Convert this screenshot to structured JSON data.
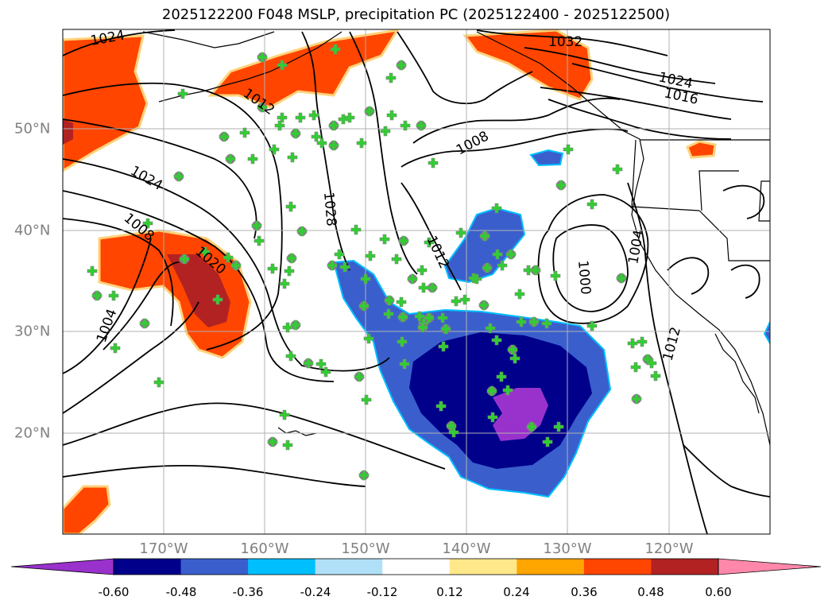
{
  "title": "2025122200 F048 MSLP, precipitation PC (2025122400 - 2025122500)",
  "map": {
    "projection": "plate-carree",
    "lon_range": [
      -180,
      -110
    ],
    "lat_range": [
      10,
      60
    ],
    "lon_ticks": [
      "170°W",
      "160°W",
      "150°W",
      "140°W",
      "130°W",
      "120°W"
    ],
    "lat_ticks": [
      "50°N",
      "40°N",
      "30°N",
      "20°N"
    ],
    "contour_labels": [
      "1024",
      "1032",
      "1012",
      "1024",
      "1016",
      "1008",
      "1024",
      "1028",
      "1008",
      "1020",
      "1012",
      "1004",
      "1000",
      "1004",
      "1012"
    ],
    "marker_color": "#32cd32",
    "marker_edge_color": "#808080",
    "contour_color": "#000000"
  },
  "colorbar": {
    "tick_labels": [
      "-0.60",
      "-0.48",
      "-0.36",
      "-0.24",
      "-0.12",
      "0.12",
      "0.24",
      "0.36",
      "0.48",
      "0.60"
    ],
    "colors": [
      "#9932cc",
      "#00008b",
      "#3a5fcd",
      "#00bfff",
      "#b0e0f8",
      "#ffffff",
      "#ffe88a",
      "#ffa500",
      "#ff4500",
      "#b22222",
      "#ff88aa"
    ]
  }
}
